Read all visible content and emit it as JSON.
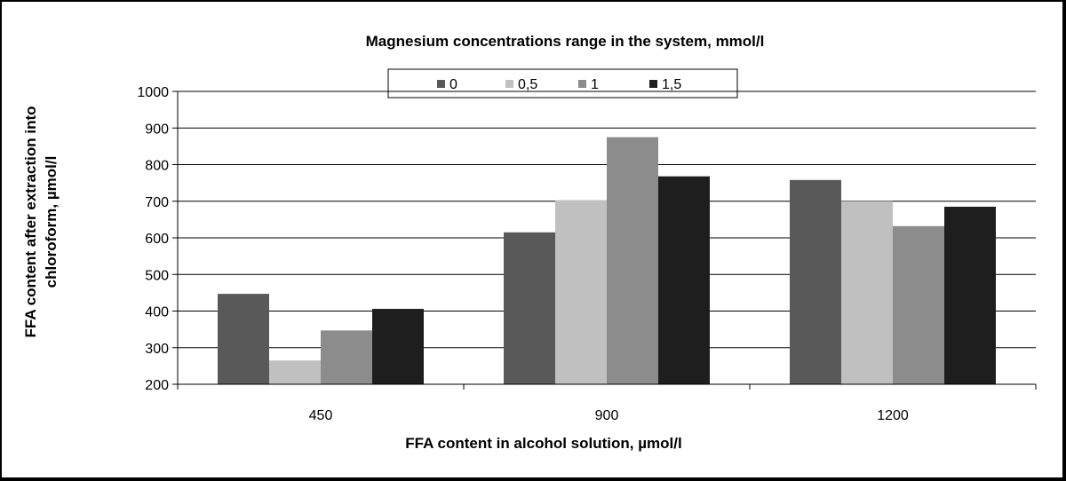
{
  "chart_data": {
    "type": "bar",
    "title": "Magnesium concentrations range in the system, mmol/l",
    "xlabel": "FFA content in alcohol solution, µmol/l",
    "ylabel_line1": "FFA content after extraction into",
    "ylabel_line2": "chloroform, µmol/l",
    "categories": [
      "450",
      "900",
      "1200"
    ],
    "ylim": [
      200,
      1000
    ],
    "yticks": [
      200,
      300,
      400,
      500,
      600,
      700,
      800,
      900,
      1000
    ],
    "grid": true,
    "legend_position": "top",
    "series": [
      {
        "name": "0",
        "color": "#595959",
        "values": [
          447,
          615,
          758
        ]
      },
      {
        "name": "0,5",
        "color": "#c0c0c0",
        "values": [
          265,
          703,
          700
        ]
      },
      {
        "name": "1",
        "color": "#8c8c8c",
        "values": [
          347,
          875,
          632
        ]
      },
      {
        "name": "1,5",
        "color": "#1e1e1e",
        "values": [
          406,
          768,
          685
        ]
      }
    ]
  }
}
